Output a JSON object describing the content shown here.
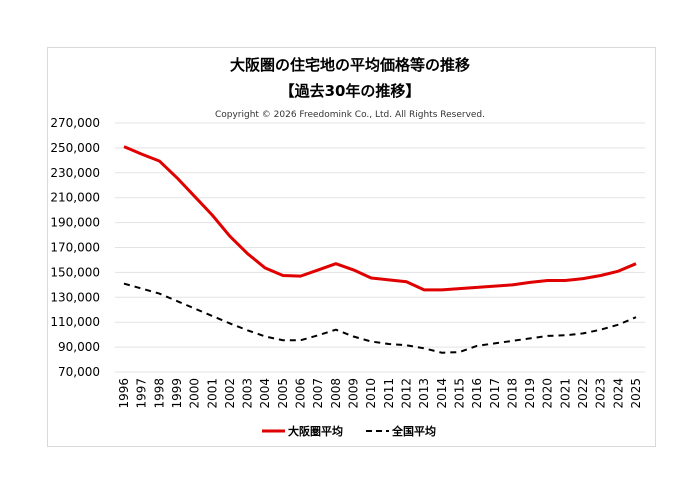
{
  "chart_data": {
    "type": "line",
    "title": "大阪圏の住宅地の平均価格等の推移",
    "subtitle": "【過去30年の推移】",
    "copyright": "Copyright © 2026 Freedomink Co., Ltd. All Rights Reserved.",
    "xlabel": "",
    "ylabel": "",
    "ylim": [
      70000,
      270000
    ],
    "ytick_step": 20000,
    "yticks": [
      "270,000",
      "250,000",
      "230,000",
      "210,000",
      "190,000",
      "170,000",
      "150,000",
      "130,000",
      "110,000",
      "90,000",
      "70,000"
    ],
    "x": [
      "1996",
      "1997",
      "1998",
      "1999",
      "2000",
      "2001",
      "2002",
      "2003",
      "2004",
      "2005",
      "2006",
      "2007",
      "2008",
      "2009",
      "2010",
      "2011",
      "2012",
      "2013",
      "2014",
      "2015",
      "2016",
      "2017",
      "2018",
      "2019",
      "2020",
      "2021",
      "2022",
      "2023",
      "2024",
      "2025"
    ],
    "grid": true,
    "legend": "bottom",
    "series": [
      {
        "name": "大阪圏平均",
        "color": "#e00000",
        "style": "solid",
        "values": [
          251000,
          245000,
          239500,
          226000,
          211000,
          196000,
          179000,
          165000,
          153500,
          147500,
          147000,
          152000,
          157000,
          152000,
          145500,
          144000,
          142500,
          136000,
          136000,
          137000,
          138000,
          139000,
          140000,
          142000,
          143500,
          143500,
          145000,
          147500,
          151000,
          157000
        ]
      },
      {
        "name": "全国平均",
        "color": "#000000",
        "style": "dashed",
        "values": [
          141000,
          137000,
          133000,
          127000,
          121000,
          115000,
          109000,
          103500,
          98500,
          95500,
          95500,
          99500,
          104000,
          98500,
          94500,
          92500,
          91500,
          89000,
          85500,
          86000,
          91000,
          93000,
          95000,
          97000,
          99000,
          99500,
          101000,
          104000,
          108000,
          114000
        ]
      }
    ]
  }
}
